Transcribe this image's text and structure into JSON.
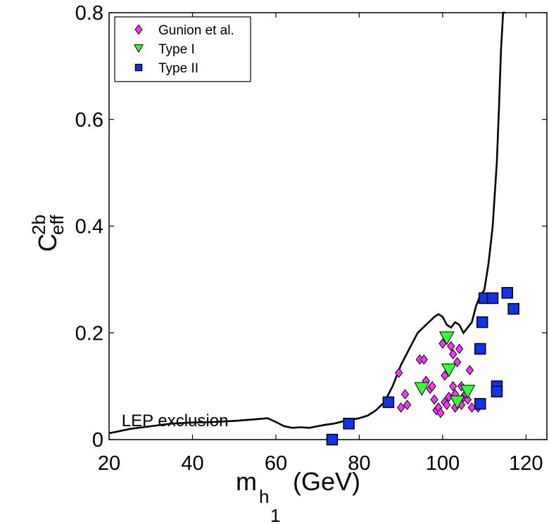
{
  "chart_data": {
    "type": "scatter",
    "title": "",
    "xlabel": {
      "main": "m",
      "sub": "h",
      "subsub": "1",
      "unit": "(GeV)"
    },
    "ylabel": {
      "main": "C",
      "sup": "2b",
      "sub": "eff"
    },
    "xlim": [
      20,
      125
    ],
    "ylim": [
      0,
      0.8
    ],
    "x_ticks": [
      "20",
      "40",
      "60",
      "80",
      "100",
      "120"
    ],
    "y_ticks": [
      "0",
      "0.2",
      "0.4",
      "0.6",
      "0.8"
    ],
    "x_tick_values": [
      20,
      40,
      60,
      80,
      100,
      120
    ],
    "y_tick_values": [
      0,
      0.2,
      0.4,
      0.6,
      0.8
    ],
    "grid": false,
    "legend_position": "top-left",
    "annotations": [
      {
        "text": "LEP exclusion",
        "x": 23,
        "y": 0.025
      }
    ],
    "exclusion_curve": {
      "x": [
        20,
        22,
        25,
        30,
        35,
        40,
        45,
        50,
        55,
        58,
        60,
        62,
        64,
        66,
        68,
        70,
        72,
        74,
        76,
        78,
        80,
        82,
        84,
        86,
        88,
        90,
        92,
        94,
        96,
        98,
        99,
        100,
        101,
        102,
        103,
        104,
        105,
        106,
        107,
        108,
        109,
        110,
        111,
        112,
        113,
        113.5,
        114,
        114.5,
        115
      ],
      "y": [
        0.012,
        0.015,
        0.02,
        0.025,
        0.03,
        0.032,
        0.033,
        0.035,
        0.038,
        0.04,
        0.033,
        0.025,
        0.022,
        0.023,
        0.022,
        0.025,
        0.028,
        0.03,
        0.034,
        0.037,
        0.04,
        0.045,
        0.055,
        0.07,
        0.1,
        0.14,
        0.17,
        0.2,
        0.215,
        0.23,
        0.235,
        0.23,
        0.215,
        0.21,
        0.22,
        0.215,
        0.2,
        0.21,
        0.22,
        0.25,
        0.27,
        0.28,
        0.33,
        0.4,
        0.52,
        0.62,
        0.73,
        0.8,
        0.85
      ]
    },
    "series": [
      {
        "name": "Gunion et al.",
        "marker": "diamond",
        "color": "#ff33ff",
        "points": [
          [
            89.5,
            0.125
          ],
          [
            90,
            0.06
          ],
          [
            91,
            0.085
          ],
          [
            91.5,
            0.065
          ],
          [
            94.5,
            0.15
          ],
          [
            95.5,
            0.15
          ],
          [
            96,
            0.11
          ],
          [
            97,
            0.095
          ],
          [
            97.5,
            0.1
          ],
          [
            98,
            0.075
          ],
          [
            98.5,
            0.055
          ],
          [
            99,
            0.06
          ],
          [
            99.5,
            0.05
          ],
          [
            100,
            0.18
          ],
          [
            100.5,
            0.12
          ],
          [
            100.5,
            0.07
          ],
          [
            101,
            0.065
          ],
          [
            101.5,
            0.08
          ],
          [
            102,
            0.175
          ],
          [
            102.5,
            0.16
          ],
          [
            102.5,
            0.1
          ],
          [
            103,
            0.085
          ],
          [
            103,
            0.06
          ],
          [
            103.5,
            0.145
          ],
          [
            104,
            0.17
          ],
          [
            104.5,
            0.1
          ],
          [
            104.5,
            0.065
          ],
          [
            105,
            0.08
          ],
          [
            105.5,
            0.085
          ],
          [
            106,
            0.075
          ],
          [
            106.5,
            0.13
          ],
          [
            107,
            0.06
          ],
          [
            108.5,
            0.06
          ]
        ]
      },
      {
        "name": "Type I",
        "marker": "triangle-down",
        "color": "#33ff33",
        "points": [
          [
            95,
            0.095
          ],
          [
            101,
            0.19
          ],
          [
            101.5,
            0.13
          ],
          [
            103.5,
            0.07
          ],
          [
            106,
            0.09
          ]
        ]
      },
      {
        "name": "Type II",
        "marker": "square",
        "color": "#1133ee",
        "points": [
          [
            73.5,
            0.0
          ],
          [
            77.5,
            0.03
          ],
          [
            87,
            0.07
          ],
          [
            109,
            0.17
          ],
          [
            109,
            0.067
          ],
          [
            109.5,
            0.22
          ],
          [
            110,
            0.265
          ],
          [
            112,
            0.265
          ],
          [
            113,
            0.1
          ],
          [
            113,
            0.09
          ],
          [
            115.5,
            0.275
          ],
          [
            117,
            0.245
          ]
        ]
      }
    ]
  }
}
